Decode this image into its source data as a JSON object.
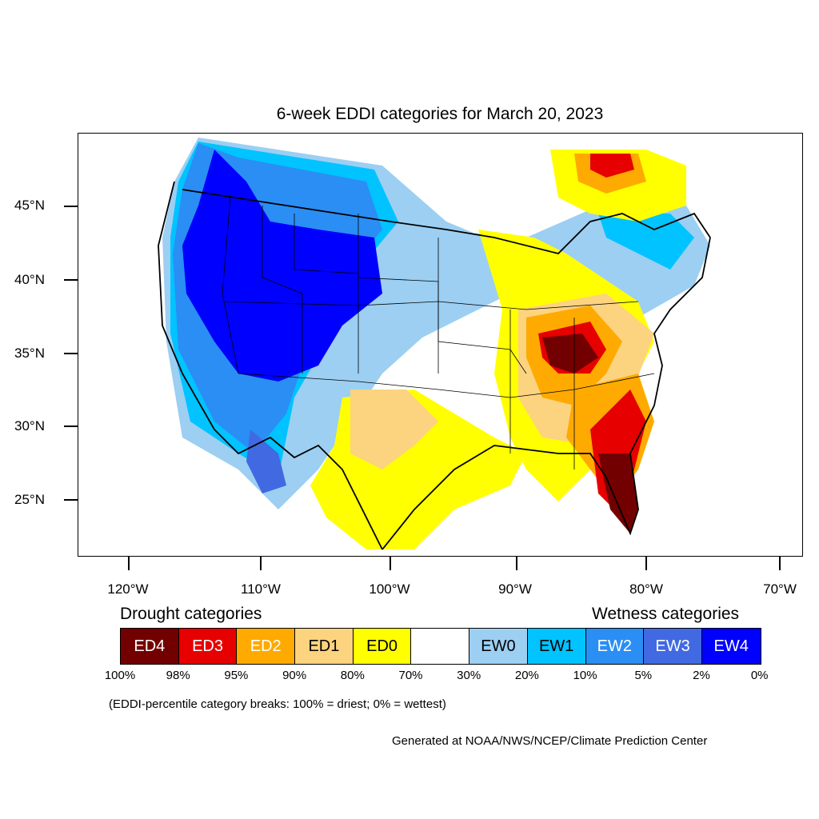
{
  "title": "6-week EDDI categories for March 20, 2023",
  "lat_labels": [
    "45°N",
    "40°N",
    "35°N",
    "30°N",
    "25°N"
  ],
  "lon_labels": [
    "120°W",
    "110°W",
    "100°W",
    "90°W",
    "80°W",
    "70°W"
  ],
  "legend": {
    "drought_heading": "Drought categories",
    "wetness_heading": "Wetness categories",
    "categories": [
      {
        "label": "ED4",
        "color": "#730000",
        "text_color": "#ffffff"
      },
      {
        "label": "ED3",
        "color": "#e60000",
        "text_color": "#ffffff"
      },
      {
        "label": "ED2",
        "color": "#ffaa00",
        "text_color": "#ffffff"
      },
      {
        "label": "ED1",
        "color": "#fcd37f",
        "text_color": "#000000"
      },
      {
        "label": "ED0",
        "color": "#ffff00",
        "text_color": "#000000"
      },
      {
        "label": "",
        "color": "#ffffff",
        "text_color": "#000000"
      },
      {
        "label": "EW0",
        "color": "#9ccff2",
        "text_color": "#000000"
      },
      {
        "label": "EW1",
        "color": "#00c3ff",
        "text_color": "#000000"
      },
      {
        "label": "EW2",
        "color": "#2a8ef5",
        "text_color": "#ffffff"
      },
      {
        "label": "EW3",
        "color": "#4169e1",
        "text_color": "#ffffff"
      },
      {
        "label": "EW4",
        "color": "#0000ff",
        "text_color": "#ffffff"
      }
    ],
    "breaks": [
      "100%",
      "98%",
      "95%",
      "90%",
      "80%",
      "70%",
      "30%",
      "20%",
      "10%",
      "5%",
      "2%",
      "0%"
    ]
  },
  "note": "(EDDI-percentile category breaks: 100% = driest; 0% = wettest)",
  "credit": "Generated at NOAA/NWS/NCEP/Climate Prediction Center"
}
